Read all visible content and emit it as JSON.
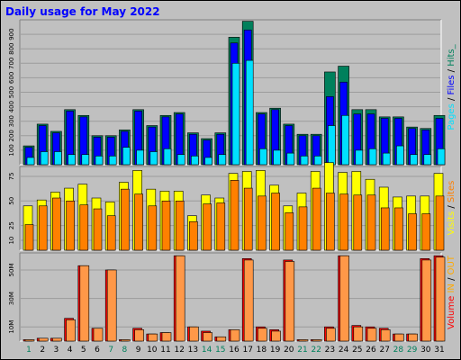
{
  "title": "Daily usage for May 2022",
  "colors": {
    "hits": "#00805c",
    "files": "#0000ff",
    "pages": "#00e0ff",
    "visits": "#ffff00",
    "sites": "#ff8000",
    "kbin": "#ff0000",
    "kbout": "#ff9848",
    "weekday_label": "#000000",
    "weekend_label": "#00805c",
    "legend_volume": "#ff0000",
    "legend_in_out": "#ffaa00"
  },
  "legend": {
    "top": [
      {
        "text": "Pages",
        "color": "#00e0ff"
      },
      {
        "text": " / ",
        "color": "#000000"
      },
      {
        "text": "Files",
        "color": "#0000ff"
      },
      {
        "text": " / ",
        "color": "#000000"
      },
      {
        "text": "Hits_",
        "color": "#00805c"
      }
    ],
    "mid": [
      {
        "text": "Visits",
        "color": "#ffff00"
      },
      {
        "text": " / ",
        "color": "#000000"
      },
      {
        "text": "Sites",
        "color": "#ff8000"
      }
    ],
    "bot": [
      {
        "text": "Volume",
        "color": "#ff0000"
      },
      {
        "text": "  ",
        "color": "#000000"
      },
      {
        "text": "IN",
        "color": "#ffaa00"
      },
      {
        "text": " / ",
        "color": "#000000"
      },
      {
        "text": "OUT",
        "color": "#ffaa00"
      }
    ]
  },
  "chart_data": [
    {
      "type": "bar",
      "name": "hits-files-pages",
      "categories": [
        "1",
        "2",
        "3",
        "4",
        "5",
        "6",
        "7",
        "8",
        "9",
        "10",
        "11",
        "12",
        "13",
        "14",
        "15",
        "16",
        "17",
        "18",
        "19",
        "20",
        "21",
        "22",
        "23",
        "24",
        "25",
        "26",
        "27",
        "28",
        "29",
        "30",
        "31"
      ],
      "weekend": [
        1,
        7,
        8,
        14,
        15,
        21,
        22,
        28,
        29
      ],
      "ymax": 1000,
      "yticks": [
        100,
        200,
        300,
        400,
        500,
        600,
        700,
        800,
        900
      ],
      "ytick_labels": [
        "100",
        "200",
        "300",
        "400",
        "500",
        "600",
        "700",
        "800",
        "900"
      ],
      "series": [
        {
          "key": "hits",
          "values": [
            130,
            280,
            230,
            380,
            340,
            200,
            200,
            240,
            380,
            270,
            340,
            360,
            220,
            180,
            220,
            880,
            990,
            360,
            390,
            280,
            210,
            210,
            640,
            680,
            380,
            380,
            330,
            330,
            260,
            250,
            340
          ]
        },
        {
          "key": "files",
          "values": [
            120,
            270,
            220,
            370,
            330,
            190,
            190,
            230,
            370,
            260,
            330,
            350,
            210,
            170,
            210,
            840,
            930,
            350,
            380,
            270,
            200,
            200,
            470,
            570,
            350,
            350,
            320,
            320,
            250,
            240,
            320
          ]
        },
        {
          "key": "pages",
          "values": [
            50,
            90,
            90,
            70,
            70,
            60,
            60,
            120,
            100,
            90,
            110,
            70,
            60,
            50,
            70,
            700,
            720,
            110,
            100,
            80,
            60,
            60,
            270,
            340,
            100,
            110,
            80,
            130,
            70,
            70,
            110
          ]
        }
      ]
    },
    {
      "type": "bar",
      "name": "visits-sites",
      "categories": [
        "1",
        "2",
        "3",
        "4",
        "5",
        "6",
        "7",
        "8",
        "9",
        "10",
        "11",
        "12",
        "13",
        "14",
        "15",
        "16",
        "17",
        "18",
        "19",
        "20",
        "21",
        "22",
        "23",
        "24",
        "25",
        "26",
        "27",
        "28",
        "29",
        "30",
        "31"
      ],
      "weekend": [
        1,
        7,
        8,
        14,
        15,
        21,
        22,
        28,
        29
      ],
      "ymax": 85,
      "yticks": [
        10,
        25,
        50,
        75
      ],
      "ytick_labels": [
        "10",
        "25",
        "50",
        "75"
      ],
      "series": [
        {
          "key": "visits",
          "values": [
            45,
            51,
            59,
            63,
            67,
            53,
            49,
            69,
            81,
            62,
            60,
            60,
            35,
            56,
            53,
            78,
            80,
            81,
            66,
            45,
            58,
            80,
            89,
            79,
            80,
            72,
            64,
            54,
            55,
            55,
            78
          ]
        },
        {
          "key": "sites",
          "values": [
            26,
            45,
            53,
            50,
            46,
            42,
            35,
            62,
            57,
            45,
            50,
            50,
            29,
            47,
            48,
            71,
            63,
            55,
            58,
            38,
            44,
            63,
            58,
            57,
            56,
            56,
            43,
            43,
            37,
            37,
            55
          ]
        }
      ]
    },
    {
      "type": "bar",
      "name": "volume-in-out",
      "categories": [
        "1",
        "2",
        "3",
        "4",
        "5",
        "6",
        "7",
        "8",
        "9",
        "10",
        "11",
        "12",
        "13",
        "14",
        "15",
        "16",
        "17",
        "18",
        "19",
        "20",
        "21",
        "22",
        "23",
        "24",
        "25",
        "26",
        "27",
        "28",
        "29",
        "30",
        "31"
      ],
      "weekend": [
        1,
        7,
        8,
        14,
        15,
        21,
        22,
        28,
        29
      ],
      "ymax": 62,
      "yticks": [
        10,
        30,
        50
      ],
      "ytick_labels": [
        "10M",
        "30M",
        "50M"
      ],
      "series": [
        {
          "key": "kbin",
          "values": [
            1,
            2,
            2,
            16,
            53,
            9,
            50,
            1,
            9,
            5,
            6,
            60,
            10,
            7,
            3,
            8,
            58,
            10,
            8,
            57,
            1,
            1,
            10,
            60,
            11,
            10,
            9,
            5,
            5,
            58,
            60
          ]
        },
        {
          "key": "kbout",
          "values": [
            1,
            2,
            2,
            15,
            53,
            9,
            50,
            1,
            8,
            5,
            6,
            60,
            10,
            6,
            3,
            8,
            57,
            9,
            7,
            56,
            1,
            1,
            9,
            60,
            10,
            9,
            8,
            5,
            5,
            57,
            59
          ]
        }
      ]
    }
  ]
}
